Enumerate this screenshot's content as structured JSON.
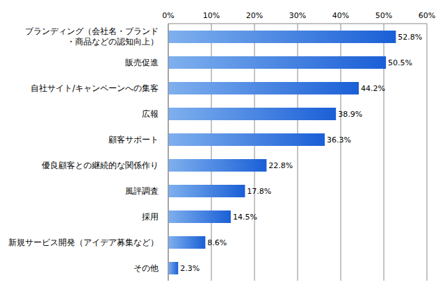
{
  "chart_data": {
    "type": "bar",
    "orientation": "horizontal",
    "categories": [
      "ブランディング（会社名・ブランド・商品などの認知向上）",
      "販売促進",
      "自社サイト/キャンペーンへの集客",
      "広報",
      "顧客サポート",
      "優良顧客との継続的な関係作り",
      "風評調査",
      "採用",
      "新規サービス開発（アイデア募集など）",
      "その他"
    ],
    "values": [
      52.8,
      50.5,
      44.2,
      38.9,
      36.3,
      22.8,
      17.8,
      14.5,
      8.6,
      2.3
    ],
    "value_labels": [
      "52.8%",
      "50.5%",
      "44.2%",
      "38.9%",
      "36.3%",
      "22.8%",
      "17.8%",
      "14.5%",
      "8.6%",
      "2.3%"
    ],
    "data_labels": true,
    "color": "#1a5fd6",
    "xlim": [
      0,
      60
    ],
    "xticks": [
      {
        "value": 0,
        "label": "0%"
      },
      {
        "value": 10,
        "label": "10%"
      },
      {
        "value": 20,
        "label": "20%"
      },
      {
        "value": 30,
        "label": "30%"
      },
      {
        "value": 40,
        "label": "40%"
      },
      {
        "value": 50,
        "label": "50%"
      },
      {
        "value": 60,
        "label": "60%"
      }
    ],
    "grid": true
  }
}
